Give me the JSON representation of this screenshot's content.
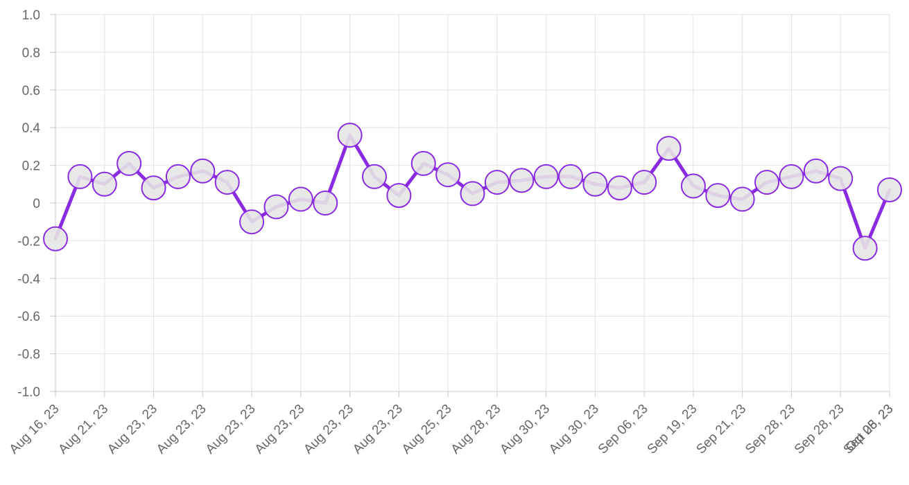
{
  "colors": {
    "series": "#8a2be2",
    "point_fill": "#e6e6e6",
    "grid": "#e1e1e1",
    "axis": "#c8c8c8",
    "tick_text": "#666666"
  },
  "chart_data": {
    "type": "line",
    "title": "",
    "xlabel": "",
    "ylabel": "",
    "ylim": [
      -1.0,
      1.0
    ],
    "y_ticks": [
      "1.0",
      "0.8",
      "0.6",
      "0.4",
      "0.2",
      "0",
      "-0.2",
      "-0.4",
      "-0.6",
      "-0.8",
      "-1.0"
    ],
    "y_tick_values": [
      1.0,
      0.8,
      0.6,
      0.4,
      0.2,
      0,
      -0.2,
      -0.4,
      -0.6,
      -0.8,
      -1.0
    ],
    "grid": true,
    "legend": "none",
    "x_tick_labels": [
      "Aug 16, 23",
      "Aug 21, 23",
      "Aug 23, 23",
      "Aug 23, 23",
      "Aug 23, 23",
      "Aug 23, 23",
      "Aug 23, 23",
      "Aug 23, 23",
      "Aug 25, 23",
      "Aug 28, 23",
      "Aug 30, 23",
      "Aug 30, 23",
      "Sep 06, 23",
      "Sep 19, 23",
      "Sep 21, 23",
      "Sep 28, 23",
      "Sep 28, 23",
      "Sep 28, 23",
      "Oct 05, 23"
    ],
    "values": [
      -0.19,
      0.14,
      0.1,
      0.21,
      0.08,
      0.14,
      0.17,
      0.11,
      -0.1,
      -0.02,
      0.02,
      0.0,
      0.36,
      0.14,
      0.04,
      0.21,
      0.15,
      0.05,
      0.11,
      0.12,
      0.14,
      0.14,
      0.1,
      0.08,
      0.11,
      0.29,
      0.09,
      0.04,
      0.02,
      0.11,
      0.14,
      0.17,
      0.13,
      -0.24,
      0.07
    ]
  }
}
